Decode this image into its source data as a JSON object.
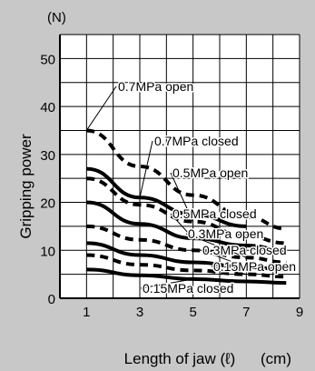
{
  "chart_data": {
    "type": "line",
    "x_axis": {
      "label": "Length of jaw (ℓ)",
      "unit": "(cm)",
      "range": [
        0,
        9
      ],
      "ticks": [
        1,
        3,
        5,
        7,
        9
      ],
      "tick_labels": [
        "1",
        "3",
        "5",
        "7",
        "9"
      ]
    },
    "y_axis": {
      "label": "Gripping power",
      "unit": "(N)",
      "range": [
        0,
        55
      ],
      "ticks": [
        0,
        10,
        20,
        30,
        40,
        50
      ],
      "tick_labels": [
        "0",
        "10",
        "20",
        "30",
        "40",
        "50"
      ]
    },
    "grid": true,
    "series": [
      {
        "name": "0.7MPa open",
        "style": "dashed",
        "x": [
          1,
          3,
          5,
          7,
          8.5
        ],
        "y": [
          35,
          27.5,
          21.5,
          17,
          14.5
        ]
      },
      {
        "name": "0.7MPa closed",
        "style": "solid",
        "x": [
          1,
          3,
          5,
          7
        ],
        "y": [
          27,
          21,
          17.5,
          15
        ]
      },
      {
        "name": "0.5MPa open",
        "style": "dashed",
        "x": [
          1,
          3,
          5,
          7,
          8.5
        ],
        "y": [
          25,
          19.5,
          16,
          13,
          11.5
        ]
      },
      {
        "name": "0.5MPa closed",
        "style": "solid",
        "x": [
          1,
          3,
          5,
          7,
          8.5
        ],
        "y": [
          20,
          15.5,
          12.5,
          11,
          10
        ]
      },
      {
        "name": "0.3MPa open",
        "style": "dashed",
        "x": [
          1,
          3,
          5,
          7,
          8.5
        ],
        "y": [
          15,
          12.2,
          10,
          8.5,
          7.5
        ]
      },
      {
        "name": "0.3MPa closed",
        "style": "solid",
        "x": [
          1,
          3,
          5,
          7,
          8.5
        ],
        "y": [
          11.5,
          9,
          7.5,
          6.5,
          6
        ]
      },
      {
        "name": "0.15MPa open",
        "style": "dashed",
        "x": [
          1,
          3,
          5,
          7,
          8.5
        ],
        "y": [
          9,
          7,
          5.8,
          5,
          4.5
        ]
      },
      {
        "name": "0.15MPa closed",
        "style": "solid",
        "x": [
          1,
          3,
          5,
          7,
          8.5
        ],
        "y": [
          6,
          4.8,
          4,
          3.5,
          3.2
        ]
      }
    ]
  }
}
